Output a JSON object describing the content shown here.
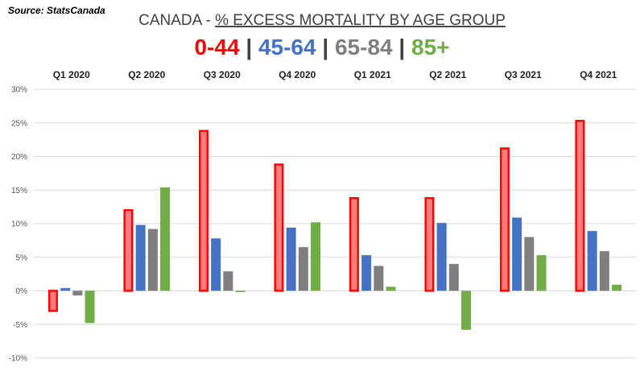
{
  "source": "Source: StatsCanada",
  "title_prefix": "CANADA - ",
  "title_main": "% EXCESS MORTALITY BY AGE GROUP",
  "legend_separator": "|",
  "colors": {
    "red": "#ff0000",
    "red_fill": "#ff7b7b",
    "blue": "#4472c4",
    "gray": "#7f7f7f",
    "green": "#70ad47",
    "grid": "#d9d9d9"
  },
  "chart_data": {
    "type": "bar",
    "title": "CANADA - % EXCESS MORTALITY BY AGE GROUP",
    "categories": [
      "Q1 2020",
      "Q2 2020",
      "Q3 2020",
      "Q4 2020",
      "Q1 2021",
      "Q2 2021",
      "Q3 2021",
      "Q4 2021"
    ],
    "series": [
      {
        "name": "0-44",
        "color": "#ff0000",
        "values": [
          -3.0,
          12.0,
          23.8,
          18.8,
          13.8,
          13.8,
          21.2,
          25.3
        ]
      },
      {
        "name": "45-64",
        "color": "#4472c4",
        "values": [
          0.4,
          9.8,
          7.8,
          9.4,
          5.3,
          10.1,
          10.9,
          8.9
        ]
      },
      {
        "name": "65-84",
        "color": "#7f7f7f",
        "values": [
          -0.7,
          9.2,
          2.9,
          6.5,
          3.7,
          4.0,
          8.0,
          5.9
        ]
      },
      {
        "name": "85+",
        "color": "#70ad47",
        "values": [
          -4.8,
          15.4,
          -0.2,
          10.2,
          0.6,
          -5.8,
          5.3,
          0.9
        ]
      }
    ],
    "yticks": [
      30,
      25,
      20,
      15,
      10,
      5,
      0,
      -5,
      -10
    ],
    "ytick_labels": [
      "30%",
      "25%",
      "20%",
      "15%",
      "10%",
      "5%",
      "0%",
      "-5%",
      "-10%"
    ],
    "ylim": [
      -10,
      30
    ],
    "xlabel": "",
    "ylabel": "",
    "grid": true,
    "legend_position": "top"
  }
}
